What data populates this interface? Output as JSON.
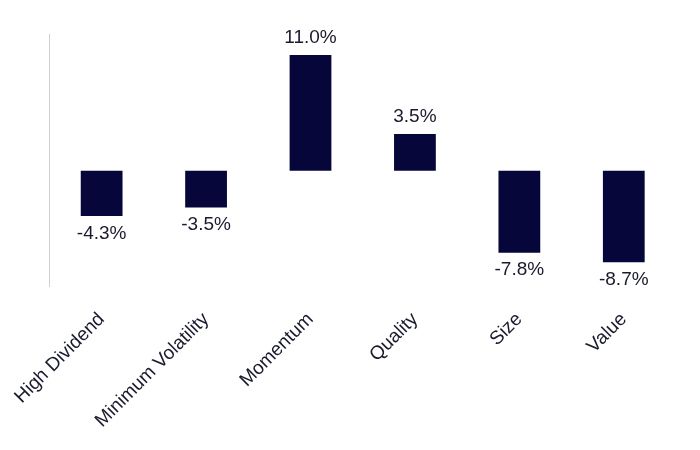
{
  "chart_data": {
    "type": "bar",
    "categories": [
      "High Dividend",
      "Minimum Volatility",
      "Momentum",
      "Quality",
      "Size",
      "Value"
    ],
    "values": [
      -4.3,
      -3.5,
      11.0,
      3.5,
      -7.8,
      -8.7
    ],
    "value_labels": [
      "-4.3%",
      "-3.5%",
      "11.0%",
      "3.5%",
      "-7.8%",
      "-8.7%"
    ],
    "color": "#07063b",
    "ylim": [
      -11,
      13
    ],
    "grid": false,
    "data_labels": true,
    "tick_labels": "x"
  }
}
